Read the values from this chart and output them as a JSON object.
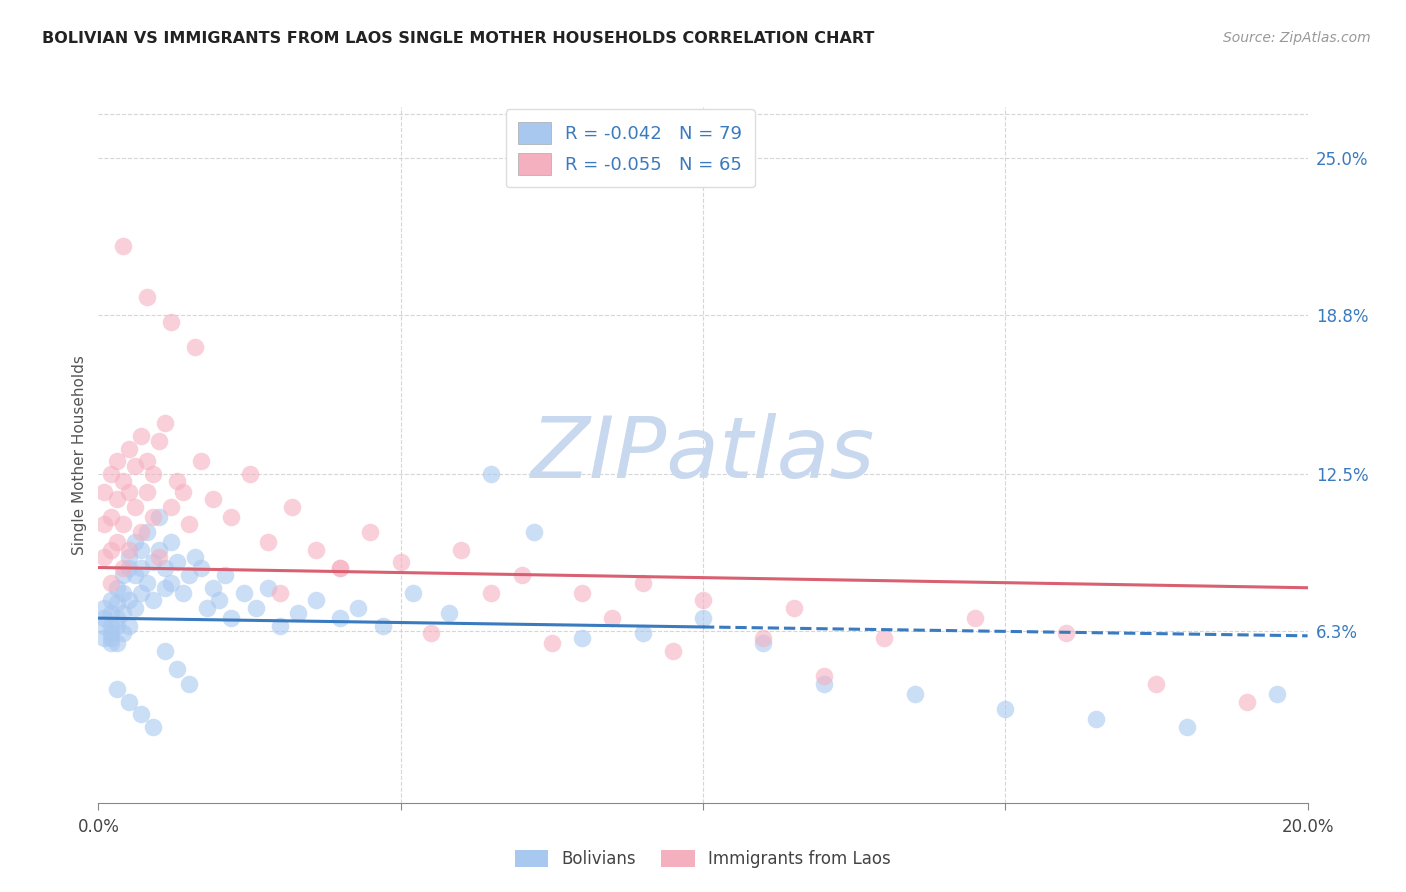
{
  "title": "BOLIVIAN VS IMMIGRANTS FROM LAOS SINGLE MOTHER HOUSEHOLDS CORRELATION CHART",
  "source": "Source: ZipAtlas.com",
  "ylabel": "Single Mother Households",
  "right_yticks": [
    "6.3%",
    "12.5%",
    "18.8%",
    "25.0%"
  ],
  "right_ytick_vals": [
    0.063,
    0.125,
    0.188,
    0.25
  ],
  "xlim": [
    0.0,
    0.2
  ],
  "ylim": [
    -0.005,
    0.27
  ],
  "legend_R1": "R = -0.042",
  "legend_N1": "N = 79",
  "legend_R2": "R = -0.055",
  "legend_N2": "N = 65",
  "color_bolivian": "#a8c8f0",
  "color_laos": "#f5b0c0",
  "color_line_bolivian": "#3a7abf",
  "color_line_laos": "#d96070",
  "color_title": "#222222",
  "color_source": "#999999",
  "color_right_labels": "#3a7abf",
  "color_legend_text": "#3a7abf",
  "scatter_bolivian_x": [
    0.001,
    0.001,
    0.001,
    0.001,
    0.002,
    0.002,
    0.002,
    0.002,
    0.002,
    0.002,
    0.003,
    0.003,
    0.003,
    0.003,
    0.003,
    0.004,
    0.004,
    0.004,
    0.004,
    0.005,
    0.005,
    0.005,
    0.005,
    0.006,
    0.006,
    0.006,
    0.007,
    0.007,
    0.007,
    0.008,
    0.008,
    0.009,
    0.009,
    0.01,
    0.01,
    0.011,
    0.011,
    0.012,
    0.012,
    0.013,
    0.014,
    0.015,
    0.016,
    0.017,
    0.018,
    0.019,
    0.02,
    0.021,
    0.022,
    0.024,
    0.026,
    0.028,
    0.03,
    0.033,
    0.036,
    0.04,
    0.043,
    0.047,
    0.052,
    0.058,
    0.065,
    0.072,
    0.08,
    0.09,
    0.1,
    0.11,
    0.12,
    0.135,
    0.15,
    0.165,
    0.18,
    0.195,
    0.003,
    0.005,
    0.007,
    0.009,
    0.011,
    0.013,
    0.015
  ],
  "scatter_bolivian_y": [
    0.065,
    0.06,
    0.068,
    0.072,
    0.06,
    0.065,
    0.07,
    0.058,
    0.075,
    0.062,
    0.068,
    0.074,
    0.08,
    0.058,
    0.065,
    0.078,
    0.062,
    0.085,
    0.07,
    0.088,
    0.075,
    0.065,
    0.092,
    0.098,
    0.085,
    0.072,
    0.095,
    0.078,
    0.088,
    0.102,
    0.082,
    0.09,
    0.075,
    0.095,
    0.108,
    0.088,
    0.08,
    0.098,
    0.082,
    0.09,
    0.078,
    0.085,
    0.092,
    0.088,
    0.072,
    0.08,
    0.075,
    0.085,
    0.068,
    0.078,
    0.072,
    0.08,
    0.065,
    0.07,
    0.075,
    0.068,
    0.072,
    0.065,
    0.078,
    0.07,
    0.125,
    0.102,
    0.06,
    0.062,
    0.068,
    0.058,
    0.042,
    0.038,
    0.032,
    0.028,
    0.025,
    0.038,
    0.04,
    0.035,
    0.03,
    0.025,
    0.055,
    0.048,
    0.042
  ],
  "scatter_laos_x": [
    0.001,
    0.001,
    0.001,
    0.002,
    0.002,
    0.002,
    0.002,
    0.003,
    0.003,
    0.003,
    0.004,
    0.004,
    0.004,
    0.005,
    0.005,
    0.005,
    0.006,
    0.006,
    0.007,
    0.007,
    0.008,
    0.008,
    0.009,
    0.009,
    0.01,
    0.01,
    0.011,
    0.012,
    0.013,
    0.014,
    0.015,
    0.017,
    0.019,
    0.022,
    0.025,
    0.028,
    0.032,
    0.036,
    0.04,
    0.045,
    0.05,
    0.06,
    0.07,
    0.08,
    0.09,
    0.1,
    0.115,
    0.13,
    0.145,
    0.16,
    0.175,
    0.19,
    0.03,
    0.04,
    0.055,
    0.065,
    0.075,
    0.085,
    0.095,
    0.11,
    0.12,
    0.004,
    0.008,
    0.012,
    0.016
  ],
  "scatter_laos_y": [
    0.092,
    0.105,
    0.118,
    0.095,
    0.108,
    0.125,
    0.082,
    0.098,
    0.115,
    0.13,
    0.088,
    0.122,
    0.105,
    0.118,
    0.135,
    0.095,
    0.128,
    0.112,
    0.14,
    0.102,
    0.13,
    0.118,
    0.125,
    0.108,
    0.138,
    0.092,
    0.145,
    0.112,
    0.122,
    0.118,
    0.105,
    0.13,
    0.115,
    0.108,
    0.125,
    0.098,
    0.112,
    0.095,
    0.088,
    0.102,
    0.09,
    0.095,
    0.085,
    0.078,
    0.082,
    0.075,
    0.072,
    0.06,
    0.068,
    0.062,
    0.042,
    0.035,
    0.078,
    0.088,
    0.062,
    0.078,
    0.058,
    0.068,
    0.055,
    0.06,
    0.045,
    0.215,
    0.195,
    0.185,
    0.175
  ],
  "watermark_zip": "ZIP",
  "watermark_atlas": "atlas",
  "watermark_color_zip": "#c8d8ee",
  "watermark_color_atlas": "#c8d8ee",
  "line_bolivian_x0": 0.0,
  "line_bolivian_x1": 0.2,
  "line_bolivian_y0": 0.068,
  "line_bolivian_y1": 0.061,
  "line_laos_x0": 0.0,
  "line_laos_x1": 0.2,
  "line_laos_y0": 0.088,
  "line_laos_y1": 0.08,
  "grid_color": "#cccccc",
  "background_color": "#ffffff",
  "grid_yticks": [
    0.063,
    0.125,
    0.188,
    0.25
  ],
  "grid_xticks": [
    0.05,
    0.1,
    0.15
  ]
}
